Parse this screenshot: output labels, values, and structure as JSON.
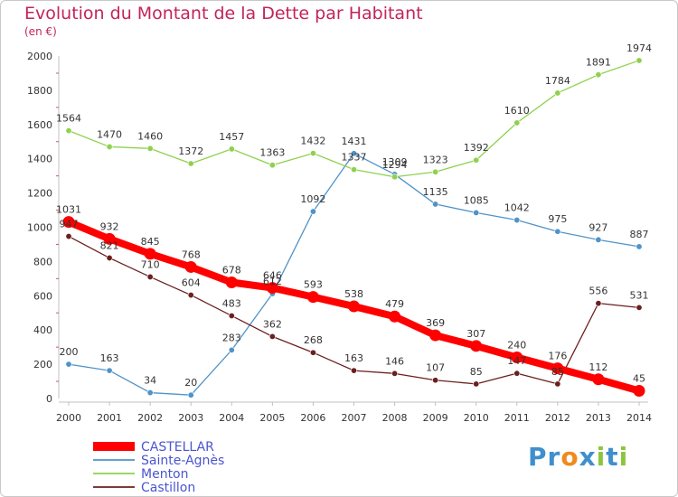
{
  "chart_data": {
    "type": "line",
    "title": "Evolution du Montant de la Dette par Habitant",
    "unit_label": "(en €)",
    "x": [
      2000,
      2001,
      2002,
      2003,
      2004,
      2005,
      2006,
      2007,
      2008,
      2009,
      2010,
      2011,
      2012,
      2013,
      2014
    ],
    "ylim": [
      0,
      2000
    ],
    "yticks": [
      0,
      200,
      400,
      600,
      800,
      1000,
      1200,
      1400,
      1600,
      1800,
      2000
    ],
    "grid": false,
    "legend_position": "bottom-left",
    "series": [
      {
        "name": "CASTELLAR",
        "color": "#ff0000",
        "values": [
          1031,
          932,
          845,
          768,
          678,
          646,
          593,
          538,
          479,
          369,
          307,
          240,
          176,
          112,
          45
        ]
      },
      {
        "name": "Sainte-Agnès",
        "color": "#4f93c9",
        "values": [
          200,
          163,
          34,
          20,
          283,
          612,
          1092,
          1431,
          1309,
          1135,
          1085,
          1042,
          975,
          927,
          887
        ]
      },
      {
        "name": "Menton",
        "color": "#8fd14f",
        "values": [
          1564,
          1470,
          1460,
          1372,
          1457,
          1363,
          1432,
          1337,
          1294,
          1323,
          1392,
          1610,
          1784,
          1891,
          1974
        ]
      },
      {
        "name": "Castillon",
        "color": "#6b1f1f",
        "values": [
          947,
          821,
          710,
          604,
          483,
          362,
          268,
          163,
          146,
          107,
          85,
          147,
          85,
          556,
          531
        ]
      }
    ]
  },
  "logo": {
    "p1": "Pr",
    "o": "o",
    "x": "x",
    "i1": "i",
    "t": "t",
    "i2": "i"
  }
}
